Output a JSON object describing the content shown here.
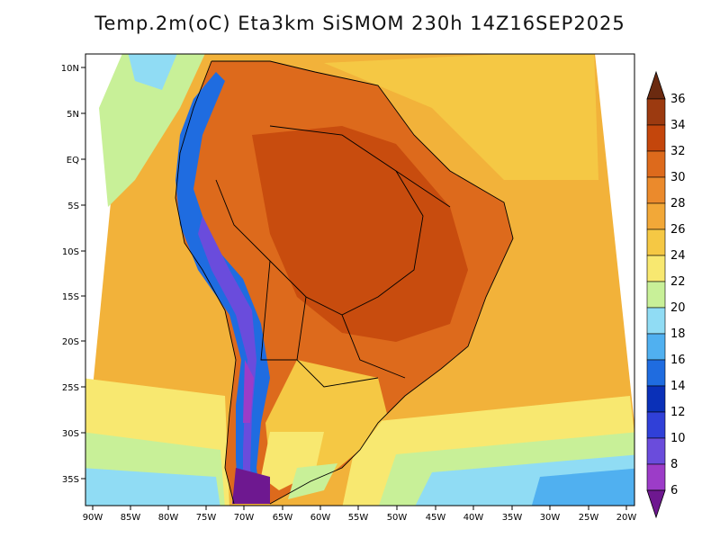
{
  "title": "Temp.2m(oC) Eta3km SiSMOM 230h 14Z16SEP2025",
  "lat_labels": [
    "10N",
    "5N",
    "EQ",
    "5S",
    "10S",
    "15S",
    "20S",
    "25S",
    "30S",
    "35S"
  ],
  "lon_labels": [
    "90W",
    "85W",
    "80W",
    "75W",
    "70W",
    "65W",
    "60W",
    "55W",
    "50W",
    "45W",
    "40W",
    "35W",
    "30W",
    "25W",
    "20W"
  ],
  "colorbar": {
    "labels": [
      "36",
      "34",
      "32",
      "30",
      "28",
      "26",
      "24",
      "22",
      "20",
      "18",
      "16",
      "14",
      "12",
      "10",
      "8",
      "6"
    ],
    "colors": [
      "#6b2a10",
      "#9c3a10",
      "#c4460c",
      "#dd6a1c",
      "#eb8a2c",
      "#f2a838",
      "#f5c844",
      "#f8e870",
      "#c8f098",
      "#90dcf4",
      "#50b0f0",
      "#1f6ce0",
      "#0a30b8",
      "#3040d8",
      "#6a4cdc",
      "#9c3cc8",
      "#6e1890"
    ]
  },
  "map_colors": {
    "ocean_warm": "#f5c844",
    "ocean_mid": "#f8e870",
    "ocean_cool": "#c8f098",
    "ocean_cold": "#90dcf4",
    "land_hot": "#dd6a1c",
    "land_very_hot": "#c4460c",
    "land_warm": "#eb8a2c",
    "andes_cold": "#1f6ce0",
    "andes_coldest": "#6e1890"
  }
}
